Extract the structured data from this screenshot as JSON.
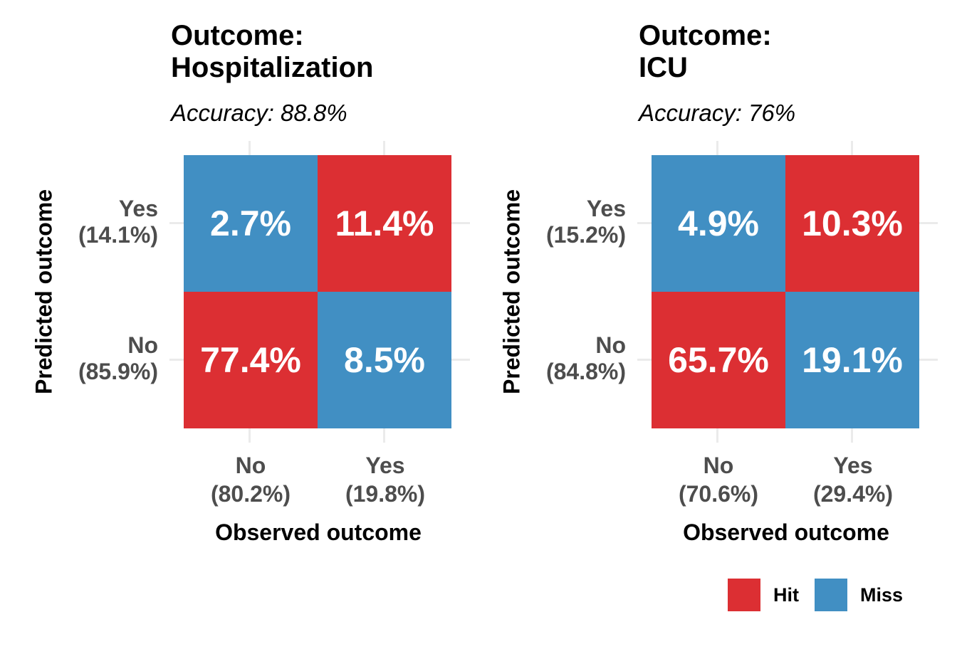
{
  "colors": {
    "hit": "#dc2f33",
    "miss": "#418fc3"
  },
  "legend": [
    {
      "label": "Hit",
      "color": "#dc2f33"
    },
    {
      "label": "Miss",
      "color": "#418fc3"
    }
  ],
  "chart_data": [
    {
      "type": "heatmap",
      "title_line1": "Outcome:",
      "title_line2": "Hospitalization",
      "subtitle": "Accuracy: 88.8%",
      "xlabel": "Observed outcome",
      "ylabel": "Predicted outcome",
      "x_ticks": [
        {
          "label": "No",
          "pct": "(80.2%)"
        },
        {
          "label": "Yes",
          "pct": "(19.8%)"
        }
      ],
      "y_ticks": [
        {
          "label": "Yes",
          "pct": "(14.1%)"
        },
        {
          "label": "No",
          "pct": "(85.9%)"
        }
      ],
      "cells": [
        {
          "observed": "No",
          "predicted": "Yes",
          "value": 2.7,
          "label": "2.7%",
          "result": "Miss"
        },
        {
          "observed": "Yes",
          "predicted": "Yes",
          "value": 11.4,
          "label": "11.4%",
          "result": "Hit"
        },
        {
          "observed": "No",
          "predicted": "No",
          "value": 77.4,
          "label": "77.4%",
          "result": "Hit"
        },
        {
          "observed": "Yes",
          "predicted": "No",
          "value": 8.5,
          "label": "8.5%",
          "result": "Miss"
        }
      ]
    },
    {
      "type": "heatmap",
      "title_line1": "Outcome:",
      "title_line2": "ICU",
      "subtitle": "Accuracy: 76%",
      "xlabel": "Observed outcome",
      "ylabel": "Predicted outcome",
      "x_ticks": [
        {
          "label": "No",
          "pct": "(70.6%)"
        },
        {
          "label": "Yes",
          "pct": "(29.4%)"
        }
      ],
      "y_ticks": [
        {
          "label": "Yes",
          "pct": "(15.2%)"
        },
        {
          "label": "No",
          "pct": "(84.8%)"
        }
      ],
      "cells": [
        {
          "observed": "No",
          "predicted": "Yes",
          "value": 4.9,
          "label": "4.9%",
          "result": "Miss"
        },
        {
          "observed": "Yes",
          "predicted": "Yes",
          "value": 10.3,
          "label": "10.3%",
          "result": "Hit"
        },
        {
          "observed": "No",
          "predicted": "No",
          "value": 65.7,
          "label": "65.7%",
          "result": "Hit"
        },
        {
          "observed": "Yes",
          "predicted": "No",
          "value": 19.1,
          "label": "19.1%",
          "result": "Miss"
        }
      ]
    }
  ]
}
